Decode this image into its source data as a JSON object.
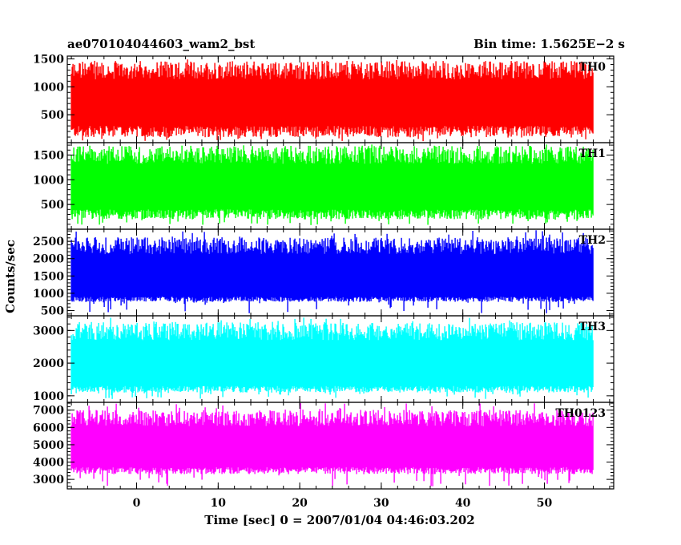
{
  "chart_data": {
    "type": "line",
    "title": "ae070104044603_wam2_bst",
    "subtitle": "Bin time: 1.5625E−2 s",
    "xlabel": "Time [sec] 0 = 2007/01/04 04:46:03.202",
    "ylabel": "Counts/sec",
    "xlim": [
      -8.5,
      58.5
    ],
    "x_ticks": [
      "0",
      "10",
      "20",
      "30",
      "40",
      "50"
    ],
    "x_tick_values": [
      0,
      10,
      20,
      30,
      40,
      50
    ],
    "data_x_range": [
      -8,
      56
    ],
    "panels": [
      {
        "name": "TH0",
        "color": "#ff0000",
        "ylim": [
          0,
          1550
        ],
        "y_ticks": [
          "500",
          "1000",
          "1500"
        ],
        "y_tick_values": [
          500,
          1000,
          1500
        ],
        "band": {
          "low": 100,
          "base": 300,
          "high": 1250,
          "min_spike": 20,
          "max_spike": 1500
        }
      },
      {
        "name": "TH1",
        "color": "#00ff00",
        "ylim": [
          0,
          1750
        ],
        "y_ticks": [
          "500",
          "1000",
          "1500"
        ],
        "y_tick_values": [
          500,
          1000,
          1500
        ],
        "band": {
          "low": 200,
          "base": 400,
          "high": 1450,
          "min_spike": 80,
          "max_spike": 1720
        }
      },
      {
        "name": "TH2",
        "color": "#0000ff",
        "ylim": [
          350,
          2850
        ],
        "y_ticks": [
          "500",
          "1000",
          "1500",
          "2000",
          "2500"
        ],
        "y_tick_values": [
          500,
          1000,
          1500,
          2000,
          2500
        ],
        "band": {
          "low": 750,
          "base": 900,
          "high": 2300,
          "min_spike": 420,
          "max_spike": 2820
        }
      },
      {
        "name": "TH3",
        "color": "#00ffff",
        "ylim": [
          800,
          3450
        ],
        "y_ticks": [
          "1000",
          "2000",
          "3000"
        ],
        "y_tick_values": [
          1000,
          2000,
          3000
        ],
        "band": {
          "low": 1100,
          "base": 1300,
          "high": 2900,
          "min_spike": 900,
          "max_spike": 3400
        }
      },
      {
        "name": "TH0123",
        "color": "#ff00ff",
        "ylim": [
          2450,
          7450
        ],
        "y_ticks": [
          "3000",
          "4000",
          "5000",
          "6000",
          "7000"
        ],
        "y_tick_values": [
          3000,
          4000,
          5000,
          6000,
          7000
        ],
        "band": {
          "low": 3300,
          "base": 3700,
          "high": 6400,
          "min_spike": 2600,
          "max_spike": 7400
        }
      }
    ]
  }
}
